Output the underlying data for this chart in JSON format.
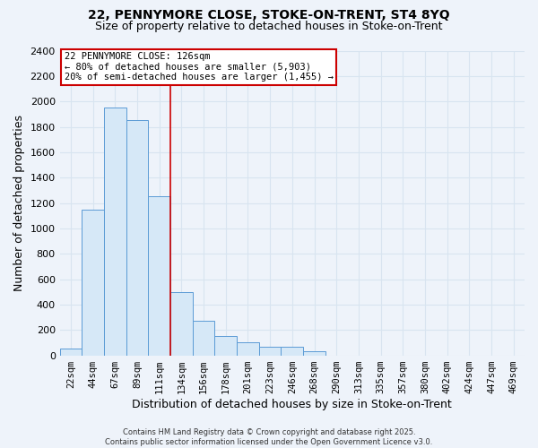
{
  "title1": "22, PENNYMORE CLOSE, STOKE-ON-TRENT, ST4 8YQ",
  "title2": "Size of property relative to detached houses in Stoke-on-Trent",
  "xlabel": "Distribution of detached houses by size in Stoke-on-Trent",
  "ylabel": "Number of detached properties",
  "bar_labels": [
    "22sqm",
    "44sqm",
    "67sqm",
    "89sqm",
    "111sqm",
    "134sqm",
    "156sqm",
    "178sqm",
    "201sqm",
    "223sqm",
    "246sqm",
    "268sqm",
    "290sqm",
    "313sqm",
    "335sqm",
    "357sqm",
    "380sqm",
    "402sqm",
    "424sqm",
    "447sqm",
    "469sqm"
  ],
  "bar_values": [
    50,
    1150,
    1950,
    1850,
    1250,
    500,
    270,
    155,
    100,
    65,
    65,
    30,
    0,
    0,
    0,
    0,
    0,
    0,
    0,
    0,
    0
  ],
  "bar_color": "#d6e8f7",
  "bar_edge_color": "#5b9bd5",
  "ylim": [
    0,
    2400
  ],
  "yticks": [
    0,
    200,
    400,
    600,
    800,
    1000,
    1200,
    1400,
    1600,
    1800,
    2000,
    2200,
    2400
  ],
  "property_line_x": 4.5,
  "annotation_text": "22 PENNYMORE CLOSE: 126sqm\n← 80% of detached houses are smaller (5,903)\n20% of semi-detached houses are larger (1,455) →",
  "annotation_box_color": "#ffffff",
  "annotation_box_edge": "#cc0000",
  "footer1": "Contains HM Land Registry data © Crown copyright and database right 2025.",
  "footer2": "Contains public sector information licensed under the Open Government Licence v3.0.",
  "bg_color": "#eef3fa",
  "grid_color": "#d8e4f0",
  "title_fontsize": 10,
  "subtitle_fontsize": 9
}
